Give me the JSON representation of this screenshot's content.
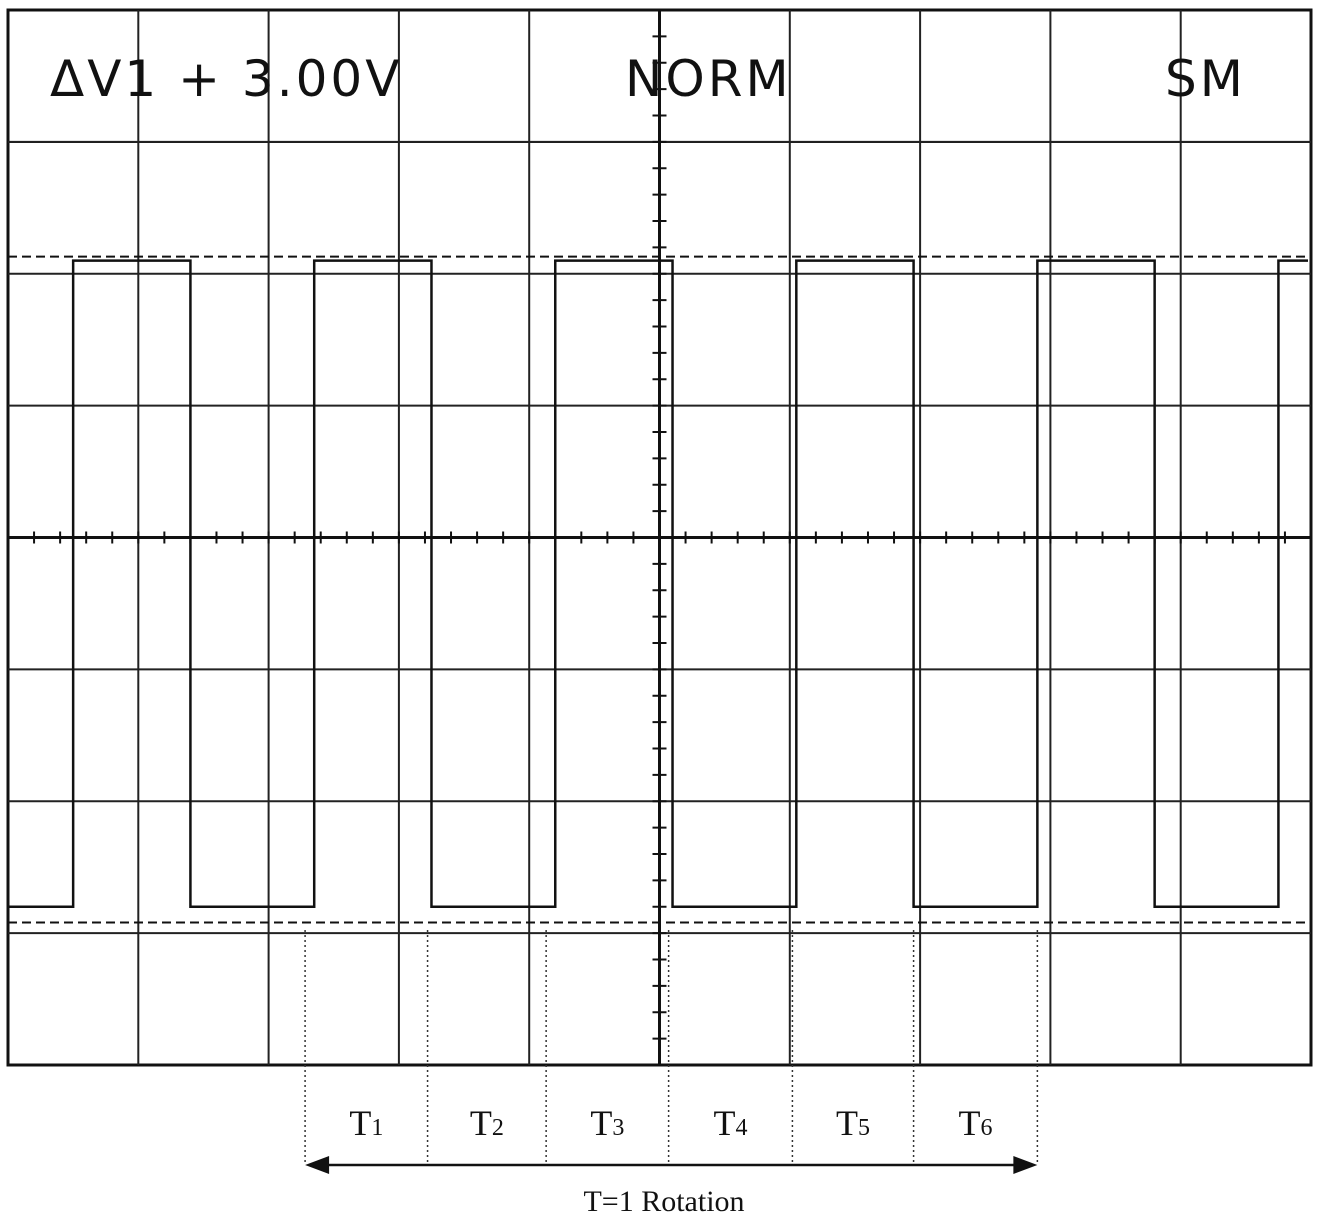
{
  "header": {
    "delta_label": "ΔV1 + 3.00V",
    "mode": "NORM",
    "sweep": "SM"
  },
  "chart_data": {
    "type": "line",
    "title": "",
    "xlabel": "",
    "ylabel": "",
    "grid": true,
    "grid_divisions": {
      "x": 10,
      "y": 8
    },
    "signal_levels_div": {
      "low": 1.2,
      "high": 6.1
    },
    "square_wave_edges_div": [
      {
        "x": 0.5,
        "edge": "rise"
      },
      {
        "x": 1.4,
        "edge": "fall"
      },
      {
        "x": 2.35,
        "edge": "rise"
      },
      {
        "x": 3.25,
        "edge": "fall"
      },
      {
        "x": 4.2,
        "edge": "rise"
      },
      {
        "x": 5.1,
        "edge": "fall"
      },
      {
        "x": 6.05,
        "edge": "rise"
      },
      {
        "x": 6.95,
        "edge": "fall"
      },
      {
        "x": 7.9,
        "edge": "rise"
      },
      {
        "x": 8.8,
        "edge": "fall"
      },
      {
        "x": 9.75,
        "edge": "rise"
      }
    ],
    "cursor_levels_div": [
      1.05,
      6.1
    ],
    "period_segments": [
      {
        "letter": "T",
        "sub": "1",
        "start_div": 2.28,
        "end_div": 3.22
      },
      {
        "letter": "T",
        "sub": "2",
        "start_div": 3.22,
        "end_div": 4.13
      },
      {
        "letter": "T",
        "sub": "3",
        "start_div": 4.13,
        "end_div": 5.07
      },
      {
        "letter": "T",
        "sub": "4",
        "start_div": 5.07,
        "end_div": 6.02
      },
      {
        "letter": "T",
        "sub": "5",
        "start_div": 6.02,
        "end_div": 6.95
      },
      {
        "letter": "T",
        "sub": "6",
        "start_div": 6.95,
        "end_div": 7.9
      }
    ],
    "rotation_label": "T=1 Rotation"
  }
}
